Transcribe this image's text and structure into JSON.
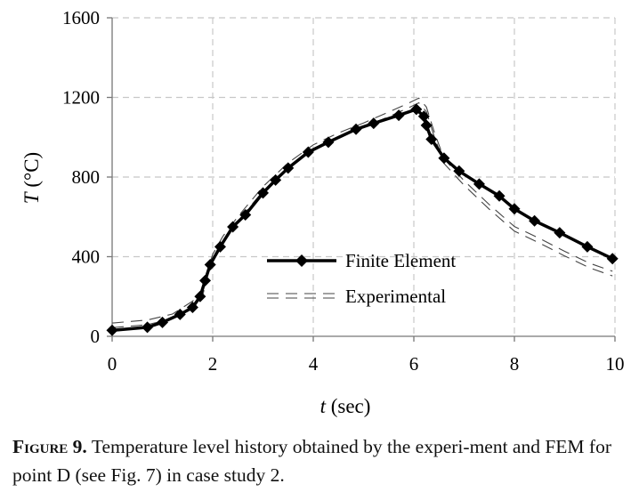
{
  "chart_data": {
    "type": "line",
    "xlabel_var": "t",
    "xlabel_unit": "(sec)",
    "ylabel_var": "T",
    "ylabel_unit": "(°C)",
    "xlim": [
      0,
      10
    ],
    "ylim": [
      0,
      1600
    ],
    "xticks": [
      0,
      2,
      4,
      6,
      8,
      10
    ],
    "yticks": [
      0,
      400,
      800,
      1200,
      1600
    ],
    "grid": true,
    "legend_position": "center-right",
    "series": [
      {
        "name": "Finite Element",
        "style": "solid-diamond",
        "color": "#000000",
        "x": [
          0.0,
          0.7,
          1.0,
          1.35,
          1.6,
          1.75,
          1.85,
          1.95,
          2.15,
          2.4,
          2.65,
          3.0,
          3.25,
          3.5,
          3.9,
          4.3,
          4.85,
          5.2,
          5.7,
          6.05,
          6.2,
          6.25,
          6.35,
          6.6,
          6.9,
          7.3,
          7.7,
          8.0,
          8.4,
          8.9,
          9.45,
          9.95
        ],
        "y": [
          30,
          45,
          70,
          110,
          145,
          200,
          280,
          360,
          450,
          550,
          610,
          720,
          785,
          845,
          925,
          975,
          1040,
          1070,
          1110,
          1140,
          1105,
          1060,
          990,
          895,
          830,
          765,
          705,
          640,
          580,
          520,
          450,
          390
        ]
      },
      {
        "name": "Experimental",
        "style": "dashed-double",
        "color": "#000000",
        "x": [
          0.0,
          0.7,
          1.2,
          1.6,
          1.8,
          1.9,
          2.0,
          2.2,
          2.5,
          3.0,
          3.5,
          4.0,
          4.5,
          5.0,
          5.5,
          5.9,
          6.1,
          6.25,
          6.4,
          6.6,
          7.0,
          7.5,
          8.0,
          8.5,
          9.0,
          9.5,
          9.95
        ],
        "y": [
          55,
          70,
          100,
          165,
          215,
          320,
          400,
          490,
          590,
          740,
          860,
          950,
          1010,
          1060,
          1115,
          1160,
          1185,
          1140,
          1020,
          880,
          770,
          650,
          540,
          480,
          415,
          355,
          315
        ]
      }
    ]
  },
  "caption": {
    "label": "Figure 9.",
    "text": "Temperature level history obtained by the experi-ment and FEM for point D (see Fig. 7) in case study 2."
  }
}
